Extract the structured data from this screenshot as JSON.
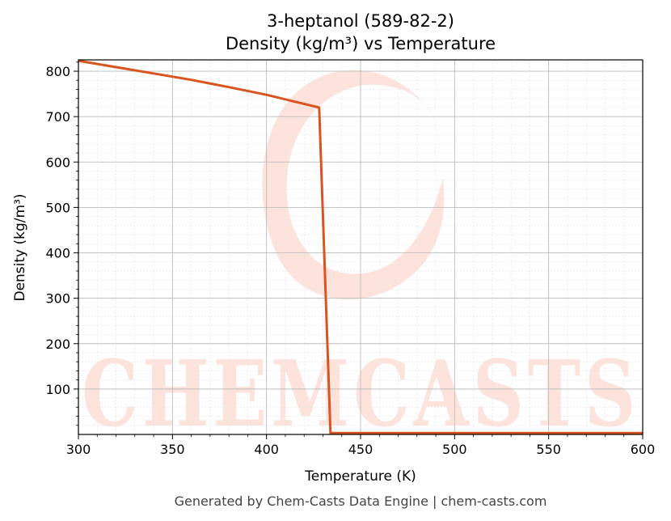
{
  "chart_data": {
    "type": "line",
    "title_line1": "3-heptanol (589-82-2)",
    "title_line2": "Density (kg/m³) vs Temperature",
    "xlabel": "Temperature (K)",
    "ylabel": "Density (kg/m³)",
    "xlim": [
      300,
      600
    ],
    "ylim": [
      0,
      825
    ],
    "xticks": [
      300,
      350,
      400,
      450,
      500,
      550,
      600
    ],
    "yticks": [
      100,
      200,
      300,
      400,
      500,
      600,
      700,
      800
    ],
    "grid": true,
    "series": [
      {
        "color": "#d9541e",
        "x": [
          300,
          320,
          340,
          360,
          380,
          400,
          420,
          428,
          434,
          450,
          500,
          550,
          600
        ],
        "y": [
          823,
          809,
          795,
          781,
          765,
          748,
          728,
          720,
          3,
          3,
          3,
          3,
          3
        ]
      }
    ]
  },
  "watermark": {
    "text": "CHEMCASTS",
    "color": "#fde3dc"
  },
  "footer": "Generated by Chem-Casts Data Engine | chem-casts.com"
}
